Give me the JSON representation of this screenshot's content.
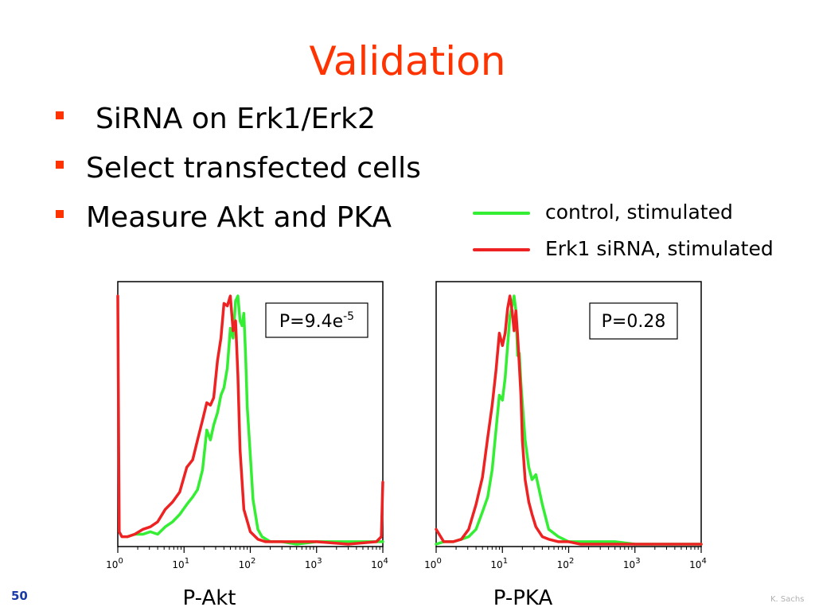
{
  "slide": {
    "title": "Validation",
    "bullets": [
      "SiRNA on Erk1/Erk2",
      "Select transfected cells",
      "Measure Akt and PKA"
    ],
    "page_number": "50",
    "author": "K. Sachs"
  },
  "colors": {
    "title": "#ff3300",
    "bullet": "#ff3300",
    "control": "#33ee33",
    "erk1": "#ee2222"
  },
  "legend": [
    {
      "label": "control, stimulated",
      "color": "#33ee33"
    },
    {
      "label": "Erk1 siRNA, stimulated",
      "color": "#ee2222"
    }
  ],
  "chart_data": [
    {
      "type": "line",
      "xlabel": "P-Akt",
      "xscale": "log",
      "xlim": [
        1,
        10000
      ],
      "xticks": [
        {
          "base": "10",
          "exp": "0"
        },
        {
          "base": "10",
          "exp": "1"
        },
        {
          "base": "10",
          "exp": "2"
        },
        {
          "base": "10",
          "exp": "3"
        },
        {
          "base": "10",
          "exp": "4"
        }
      ],
      "annotation": {
        "prefix": "P=9.4e",
        "sup": "-5"
      },
      "ylim": [
        0,
        1
      ],
      "series": [
        {
          "name": "control, stimulated",
          "color": "#33ee33",
          "x": [
            1.4,
            1.8,
            2.4,
            3.1,
            4.0,
            5.2,
            6.7,
            8.6,
            11,
            13.5,
            16,
            19,
            22,
            25,
            28,
            32,
            36,
            40,
            45,
            50,
            55,
            60,
            65,
            70,
            75,
            80,
            85,
            90,
            100,
            110,
            130,
            150,
            200,
            300,
            500,
            1000,
            5000,
            10000
          ],
          "y": [
            0.03,
            0.04,
            0.04,
            0.05,
            0.04,
            0.07,
            0.09,
            0.12,
            0.16,
            0.19,
            0.22,
            0.3,
            0.46,
            0.42,
            0.48,
            0.53,
            0.6,
            0.63,
            0.71,
            0.87,
            0.83,
            0.98,
            1.0,
            0.9,
            0.88,
            0.93,
            0.76,
            0.55,
            0.36,
            0.18,
            0.06,
            0.03,
            0.01,
            0.01,
            0.0,
            0.01,
            0.01,
            0.01
          ]
        },
        {
          "name": "Erk1 siRNA, stimulated",
          "color": "#ee2222",
          "x": [
            1.0,
            1.05,
            1.15,
            1.4,
            1.8,
            2.4,
            3.1,
            4.0,
            5.2,
            6.7,
            8.6,
            11,
            13.5,
            16,
            19,
            22,
            25,
            28,
            32,
            36,
            40,
            45,
            50,
            55,
            60,
            65,
            70,
            80,
            100,
            130,
            170,
            250,
            500,
            1000,
            3000,
            8000,
            9500,
            10000
          ],
          "y": [
            1.0,
            0.05,
            0.03,
            0.03,
            0.04,
            0.06,
            0.07,
            0.09,
            0.14,
            0.17,
            0.21,
            0.31,
            0.34,
            0.42,
            0.5,
            0.57,
            0.56,
            0.59,
            0.74,
            0.83,
            0.97,
            0.96,
            1.0,
            0.86,
            0.9,
            0.68,
            0.38,
            0.14,
            0.05,
            0.02,
            0.01,
            0.01,
            0.01,
            0.01,
            0.0,
            0.01,
            0.03,
            0.25
          ]
        }
      ]
    },
    {
      "type": "line",
      "xlabel": "P-PKA",
      "xscale": "log",
      "xlim": [
        1,
        10000
      ],
      "xticks": [
        {
          "base": "10",
          "exp": "0"
        },
        {
          "base": "10",
          "exp": "1"
        },
        {
          "base": "10",
          "exp": "2"
        },
        {
          "base": "10",
          "exp": "3"
        },
        {
          "base": "10",
          "exp": "4"
        }
      ],
      "annotation": {
        "prefix": "P=0.28",
        "sup": ""
      },
      "ylim": [
        0,
        1
      ],
      "series": [
        {
          "name": "control, stimulated",
          "color": "#33ee33",
          "x": [
            1.0,
            1.3,
            1.8,
            2.4,
            3.1,
            4.0,
            5.0,
            6.0,
            7.0,
            8.0,
            9.0,
            10,
            11,
            12,
            13,
            14,
            15,
            16,
            17,
            18,
            19,
            20,
            22,
            25,
            28,
            32,
            40,
            50,
            70,
            100,
            150,
            200,
            500,
            1000,
            10000
          ],
          "y": [
            0.0,
            0.01,
            0.01,
            0.02,
            0.03,
            0.06,
            0.13,
            0.19,
            0.3,
            0.46,
            0.6,
            0.58,
            0.67,
            0.8,
            0.92,
            0.96,
            1.0,
            0.94,
            0.76,
            0.77,
            0.65,
            0.57,
            0.42,
            0.31,
            0.26,
            0.28,
            0.16,
            0.06,
            0.03,
            0.01,
            0.01,
            0.01,
            0.01,
            0.0,
            0.0
          ]
        },
        {
          "name": "Erk1 siRNA, stimulated",
          "color": "#ee2222",
          "x": [
            1.0,
            1.3,
            1.8,
            2.4,
            3.1,
            4.0,
            5.0,
            6.0,
            7.0,
            8.0,
            9.0,
            10,
            11,
            12,
            13,
            14,
            15,
            16,
            17,
            18,
            19,
            20,
            22,
            25,
            28,
            32,
            40,
            50,
            70,
            100,
            150,
            200,
            300,
            500,
            1000,
            10000
          ],
          "y": [
            0.06,
            0.01,
            0.01,
            0.02,
            0.06,
            0.16,
            0.27,
            0.43,
            0.56,
            0.7,
            0.85,
            0.8,
            0.85,
            0.95,
            1.0,
            0.94,
            0.86,
            0.94,
            0.84,
            0.72,
            0.6,
            0.42,
            0.26,
            0.17,
            0.12,
            0.07,
            0.03,
            0.02,
            0.01,
            0.01,
            0.0,
            0.0,
            0.0,
            0.0,
            0.0,
            0.0
          ]
        }
      ]
    }
  ]
}
